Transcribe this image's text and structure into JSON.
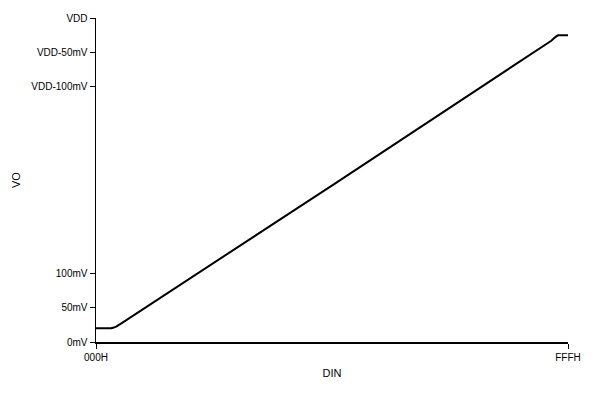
{
  "chart_data": {
    "type": "line",
    "x_label": "DIN",
    "y_label": "VO",
    "x": [
      0,
      60,
      130,
      170,
      210,
      3950,
      3990,
      4010,
      4040,
      4095
    ],
    "series": [
      {
        "color": "#000000",
        "values": [
          20,
          20,
          20,
          22,
          26,
          437,
          443,
          445,
          445,
          445
        ]
      }
    ],
    "xlim": [
      0,
      4095
    ],
    "xticks": [
      {
        "value": 0,
        "label": "000H"
      },
      {
        "value": 4095,
        "label": "FFFH"
      }
    ],
    "ylim": [
      0,
      470
    ],
    "yticks": [
      {
        "value": 0,
        "label": "0mV"
      },
      {
        "value": 50,
        "label": "50mV"
      },
      {
        "value": 100,
        "label": "100mV"
      },
      {
        "value": 370,
        "label": "VDD-100mV"
      },
      {
        "value": 420,
        "label": "VDD-50mV"
      },
      {
        "value": 470,
        "label": "VDD"
      }
    ],
    "grid": false
  }
}
